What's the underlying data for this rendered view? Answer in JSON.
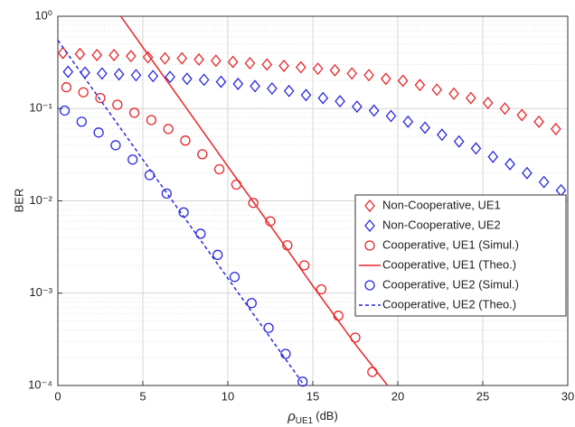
{
  "chart_data": {
    "type": "line",
    "ylabel": "BER",
    "xlabel": {
      "symbol": "ρ",
      "subscript": "UE1",
      "unit": "(dB)"
    },
    "xlim": [
      0,
      30
    ],
    "xticks": [
      0,
      5,
      10,
      15,
      20,
      25,
      30
    ],
    "ylim": [
      0.0001,
      1
    ],
    "yticks": [
      {
        "value": 0.0001,
        "label": "10⁻⁴"
      },
      {
        "value": 0.001,
        "label": "10⁻³"
      },
      {
        "value": 0.01,
        "label": "10⁻²"
      },
      {
        "value": 0.1,
        "label": "10⁻¹"
      },
      {
        "value": 1,
        "label": "10⁰"
      }
    ],
    "log_y": true,
    "grid": true,
    "minor_grid": true,
    "legend": "lower right",
    "series": [
      {
        "name": "Non-Cooperative, UE1",
        "color": "#e8262a",
        "marker": "diamond",
        "line": "none",
        "x": [
          0.3,
          1.3,
          2.3,
          3.3,
          4.3,
          5.3,
          6.3,
          7.3,
          8.3,
          9.3,
          10.3,
          11.3,
          12.3,
          13.3,
          14.3,
          15.3,
          16.3,
          17.3,
          18.3,
          19.3,
          20.3,
          21.3,
          22.3,
          23.3,
          24.3,
          25.3,
          26.3,
          27.3,
          28.3,
          29.3
        ],
        "values": [
          0.4,
          0.39,
          0.38,
          0.38,
          0.37,
          0.36,
          0.35,
          0.35,
          0.34,
          0.33,
          0.32,
          0.31,
          0.3,
          0.29,
          0.28,
          0.27,
          0.26,
          0.24,
          0.23,
          0.21,
          0.2,
          0.18,
          0.16,
          0.145,
          0.13,
          0.115,
          0.1,
          0.085,
          0.072,
          0.06
        ]
      },
      {
        "name": "Non-Cooperative, UE2",
        "color": "#2a2ae0",
        "marker": "diamond",
        "line": "none",
        "x": [
          0.6,
          1.6,
          2.6,
          3.6,
          4.6,
          5.6,
          6.6,
          7.6,
          8.6,
          9.6,
          10.6,
          11.6,
          12.6,
          13.6,
          14.6,
          15.6,
          16.6,
          17.6,
          18.6,
          19.6,
          20.6,
          21.6,
          22.6,
          23.6,
          24.6,
          25.6,
          26.6,
          27.6,
          28.6,
          29.6
        ],
        "values": [
          0.25,
          0.245,
          0.24,
          0.235,
          0.23,
          0.225,
          0.22,
          0.21,
          0.205,
          0.195,
          0.185,
          0.175,
          0.165,
          0.155,
          0.14,
          0.13,
          0.12,
          0.105,
          0.095,
          0.083,
          0.072,
          0.062,
          0.052,
          0.044,
          0.037,
          0.03,
          0.025,
          0.02,
          0.016,
          0.013
        ]
      },
      {
        "name": "Cooperative, UE1 (Simul.)",
        "color": "#e8262a",
        "marker": "circle",
        "line": "none",
        "x": [
          0.5,
          1.5,
          2.5,
          3.5,
          4.5,
          5.5,
          6.5,
          7.5,
          8.5,
          9.5,
          10.5,
          11.5,
          12.5,
          13.5,
          14.5,
          15.5,
          16.5,
          17.5,
          18.5
        ],
        "values": [
          0.17,
          0.15,
          0.13,
          0.11,
          0.09,
          0.075,
          0.06,
          0.045,
          0.032,
          0.022,
          0.015,
          0.0095,
          0.006,
          0.0033,
          0.002,
          0.0011,
          0.00057,
          0.00033,
          0.00014
        ]
      },
      {
        "name": "Cooperative, UE1 (Theo.)",
        "color": "#e8262a",
        "marker": "none",
        "line": "solid",
        "x": [
          3.7,
          5,
          7.5,
          10,
          12.5,
          15,
          17.5,
          19.4
        ],
        "values": [
          1,
          0.46,
          0.105,
          0.0236,
          0.0054,
          0.0012,
          0.00028,
          0.0001
        ]
      },
      {
        "name": "Cooperative, UE2 (Simul.)",
        "color": "#2a2ae0",
        "marker": "circle",
        "line": "none",
        "x": [
          0.4,
          1.4,
          2.4,
          3.4,
          4.4,
          5.4,
          6.4,
          7.4,
          8.4,
          9.4,
          10.4,
          11.4,
          12.4,
          13.4,
          14.4
        ],
        "values": [
          0.095,
          0.072,
          0.055,
          0.04,
          0.028,
          0.019,
          0.012,
          0.0075,
          0.0044,
          0.0026,
          0.0015,
          0.00078,
          0.00042,
          0.00022,
          0.00011
        ]
      },
      {
        "name": "Cooperative, UE2 (Theo.)",
        "color": "#2a2ae0",
        "marker": "none",
        "line": "dashed",
        "x": [
          0,
          5,
          10,
          14.5
        ],
        "values": [
          0.55,
          0.028,
          0.00145,
          0.0001
        ]
      }
    ]
  }
}
